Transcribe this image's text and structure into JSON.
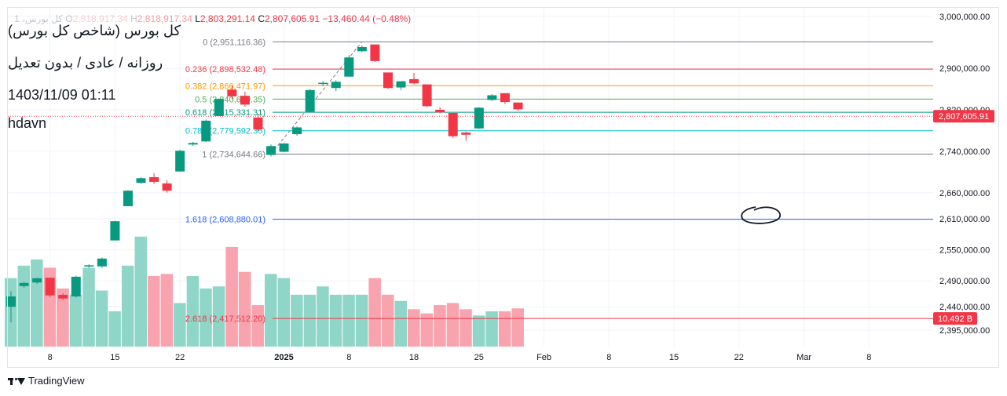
{
  "header": {
    "symbol_faded": "1 ،کل بورس",
    "o_label": "O",
    "o_value": "2,818,917.34",
    "h_label": "H",
    "h_value": "2,818,917.34",
    "l_label": "L",
    "l_value": "2,803,291.14",
    "c_label": "C",
    "c_value": "2,807,605.91",
    "change": "−13,460.44 (−0.48%)"
  },
  "info": {
    "title": "کل بورس (شاخص کل بورس)",
    "subtitle": "روزانه / عادی / بدون تعدیل",
    "datetime": "1403/11/09 01:11",
    "author": "hdavn"
  },
  "footer": {
    "brand": "TradingView"
  },
  "colors": {
    "up": "#089981",
    "down": "#f23645",
    "vol_up": "#8fd6c9",
    "vol_down": "#f8a3ad",
    "grid": "#f0f3fa",
    "axis_text": "#131722"
  },
  "chart_data": {
    "type": "candlestick",
    "price_axis": {
      "range": [
        2380000,
        3010000
      ],
      "ticks": [
        "3,000,000.00",
        "2,900,000.00",
        "2,820,000.00",
        "2,740,000.00",
        "2,660,000.00",
        "2,610,000.00",
        "2,550,000.00",
        "2,490,000.00",
        "2,440,000.00",
        "2,395,000.00"
      ],
      "tick_values": [
        3000000,
        2900000,
        2820000,
        2740000,
        2660000,
        2610000,
        2550000,
        2490000,
        2440000,
        2395000
      ]
    },
    "time_axis": {
      "labels": [
        "8",
        "15",
        "22",
        "2025",
        "8",
        "18",
        "25",
        "Feb",
        "8",
        "15",
        "22",
        "Mar",
        "8"
      ],
      "label_index": [
        3,
        8,
        13,
        21,
        26,
        31,
        36,
        41,
        46,
        51,
        56,
        61,
        66
      ]
    },
    "last_price_label": "2,807,605.91",
    "last_price": 2807605.91,
    "volume_label": "10.492 B",
    "candles": [
      [
        2440000,
        2470000,
        2410000,
        2460000
      ],
      [
        2480000,
        2488000,
        2477000,
        2486000
      ],
      [
        2487000,
        2496000,
        2484000,
        2495000
      ],
      [
        2496000,
        2496000,
        2459000,
        2462000
      ],
      [
        2463000,
        2466000,
        2453000,
        2456000
      ],
      [
        2460000,
        2500000,
        2458000,
        2498000
      ],
      [
        2518000,
        2522000,
        2515000,
        2520000
      ],
      [
        2518000,
        2535000,
        2515000,
        2533000
      ],
      [
        2568000,
        2606000,
        2568000,
        2605000
      ],
      [
        2634000,
        2665000,
        2634000,
        2664000
      ],
      [
        2679000,
        2690000,
        2677000,
        2688000
      ],
      [
        2690000,
        2698000,
        2677000,
        2681000
      ],
      [
        2678000,
        2684000,
        2660000,
        2664000
      ],
      [
        2701000,
        2743000,
        2701000,
        2741000
      ],
      [
        2753000,
        2758000,
        2750000,
        2756000
      ],
      [
        2759000,
        2801000,
        2758000,
        2799000
      ],
      [
        2808000,
        2842000,
        2808000,
        2841000
      ],
      [
        2859000,
        2867000,
        2840000,
        2846000
      ],
      [
        2847000,
        2855000,
        2826000,
        2830000
      ],
      [
        2805000,
        2812000,
        2778000,
        2782000
      ],
      [
        2733000,
        2753000,
        2730000,
        2750000
      ],
      [
        2739000,
        2756000,
        2738000,
        2755000
      ],
      [
        2773000,
        2788000,
        2770000,
        2786000
      ],
      [
        2816000,
        2860000,
        2815000,
        2858000
      ],
      [
        2870000,
        2875000,
        2866000,
        2872000
      ],
      [
        2862000,
        2877000,
        2856000,
        2874000
      ],
      [
        2884000,
        2925000,
        2884000,
        2921000
      ],
      [
        2933000,
        2944000,
        2931000,
        2941000
      ],
      [
        2946000,
        2946000,
        2912000,
        2914000
      ],
      [
        2892000,
        2892000,
        2860000,
        2862000
      ],
      [
        2863000,
        2875000,
        2858000,
        2875000
      ],
      [
        2879000,
        2891000,
        2869000,
        2871000
      ],
      [
        2869000,
        2869000,
        2825000,
        2827000
      ],
      [
        2820000,
        2825000,
        2813000,
        2815000
      ],
      [
        2814000,
        2814000,
        2766000,
        2769000
      ],
      [
        2776000,
        2778000,
        2760000,
        2772000
      ],
      [
        2784000,
        2825000,
        2783000,
        2824000
      ],
      [
        2839000,
        2850000,
        2837000,
        2848000
      ],
      [
        2852000,
        2852000,
        2831000,
        2835000
      ],
      [
        2834000,
        2834000,
        2818000,
        2821000
      ]
    ],
    "volume_scale": [
      0,
      3.2
    ],
    "volumes": [
      1.65,
      1.95,
      2.1,
      1.9,
      1.4,
      1.25,
      1.9,
      1.35,
      0.85,
      1.95,
      2.65,
      1.7,
      1.75,
      1.05,
      1.7,
      1.4,
      1.45,
      2.4,
      1.8,
      1.0,
      1.75,
      1.65,
      1.25,
      1.25,
      1.45,
      1.25,
      1.25,
      1.25,
      1.65,
      1.25,
      1.1,
      0.9,
      0.8,
      1.0,
      1.05,
      0.9,
      0.75,
      0.85,
      0.85,
      0.92
    ],
    "fib_levels": [
      {
        "label": "0 (2,951,116.36)",
        "value": 2951116.36,
        "color": "#787b86"
      },
      {
        "label": "0.236 (2,898,532.48)",
        "value": 2898532.48,
        "color": "#f23645"
      },
      {
        "label": "0.382 (2,866,471.97)",
        "value": 2866471.97,
        "color": "#ff9800"
      },
      {
        "label": "0.5 (2,840,619.35)",
        "value": 2840619.35,
        "color": "#4caf50"
      },
      {
        "label": "0.618 (2,815,331.31)",
        "value": 2815331.31,
        "color": "#089981"
      },
      {
        "label": "0.786 (2,779,592.35)",
        "value": 2779592.35,
        "color": "#00bcd4"
      },
      {
        "label": "1 (2,734,644.66)",
        "value": 2734644.66,
        "color": "#787b86"
      },
      {
        "label": "1.618 (2,608,880.01)",
        "value": 2608880.01,
        "color": "#2962ff"
      },
      {
        "label": "2.618 (2,417,512.20)",
        "value": 2417512.2,
        "color": "#f23645"
      }
    ]
  }
}
